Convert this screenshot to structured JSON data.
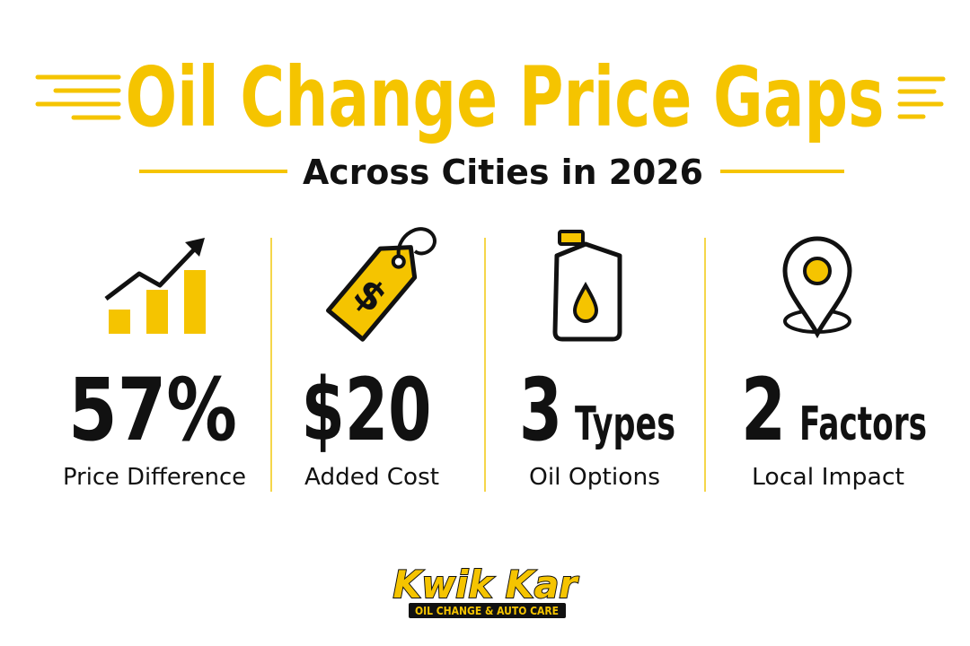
{
  "header": {
    "title": "Oil Change Price Gaps",
    "subtitle": "Across Cities in 2026"
  },
  "stats": [
    {
      "figure": "57%",
      "label": "Price Difference"
    },
    {
      "figure": "$20",
      "label": "Added Cost"
    },
    {
      "figure": "3",
      "unit": "Types",
      "label": "Oil Options"
    },
    {
      "figure": "2",
      "unit": "Factors",
      "label": "Local Impact"
    }
  ],
  "logo": {
    "name": "Kwik Kar",
    "tagline": "OIL CHANGE & AUTO CARE"
  }
}
